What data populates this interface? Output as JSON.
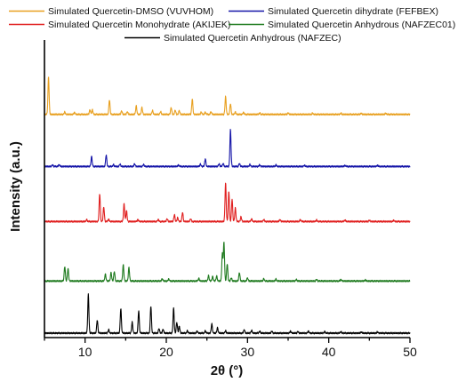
{
  "chart_data": {
    "type": "line",
    "title": "",
    "xlabel": "2θ (°)",
    "ylabel": "Intensity (a.u.)",
    "xlim": [
      5,
      50
    ],
    "x_ticks": [
      10,
      20,
      30,
      40,
      50
    ],
    "y_ticks_shown": false,
    "grid": false,
    "legend_position": "top",
    "series": [
      {
        "name": "Simulated Quercetin-DMSO (VUVHOM)",
        "color": "#E8A020",
        "baseline": 0.75,
        "peaks": [
          [
            5.5,
            0.97
          ],
          [
            7.5,
            0.06
          ],
          [
            8.7,
            0.05
          ],
          [
            10.6,
            0.12
          ],
          [
            10.9,
            0.12
          ],
          [
            13.0,
            0.38
          ],
          [
            14.5,
            0.09
          ],
          [
            15.2,
            0.07
          ],
          [
            16.3,
            0.22
          ],
          [
            17.0,
            0.18
          ],
          [
            18.3,
            0.1
          ],
          [
            19.3,
            0.07
          ],
          [
            20.6,
            0.18
          ],
          [
            21.1,
            0.11
          ],
          [
            21.6,
            0.1
          ],
          [
            23.2,
            0.4
          ],
          [
            24.3,
            0.06
          ],
          [
            24.8,
            0.06
          ],
          [
            25.5,
            0.07
          ],
          [
            27.3,
            0.46
          ],
          [
            27.9,
            0.28
          ],
          [
            28.5,
            0.06
          ],
          [
            29.5,
            0.05
          ],
          [
            31.5,
            0.04
          ],
          [
            35.0,
            0.04
          ],
          [
            38.0,
            0.03
          ],
          [
            41.5,
            0.03
          ],
          [
            44.0,
            0.03
          ],
          [
            47.0,
            0.03
          ]
        ]
      },
      {
        "name": "Simulated Quercetin dihydrate (FEFBEX)",
        "color": "#1515A8",
        "baseline": 0.575,
        "peaks": [
          [
            6.0,
            0.04
          ],
          [
            6.8,
            0.05
          ],
          [
            10.8,
            0.26
          ],
          [
            12.6,
            0.3
          ],
          [
            13.5,
            0.05
          ],
          [
            14.3,
            0.06
          ],
          [
            16.1,
            0.07
          ],
          [
            17.2,
            0.05
          ],
          [
            21.5,
            0.04
          ],
          [
            24.2,
            0.06
          ],
          [
            24.8,
            0.2
          ],
          [
            26.5,
            0.07
          ],
          [
            27.0,
            0.08
          ],
          [
            27.9,
            0.95
          ],
          [
            29.0,
            0.08
          ],
          [
            30.3,
            0.05
          ],
          [
            31.5,
            0.04
          ],
          [
            33.5,
            0.04
          ],
          [
            37.0,
            0.03
          ],
          [
            42.0,
            0.03
          ],
          [
            46.0,
            0.03
          ]
        ]
      },
      {
        "name": "Simulated Quercetin Monohydrate (AKIJEK)",
        "color": "#E01E1E",
        "baseline": 0.39,
        "peaks": [
          [
            10.2,
            0.05
          ],
          [
            11.8,
            0.72
          ],
          [
            12.3,
            0.38
          ],
          [
            12.9,
            0.06
          ],
          [
            14.8,
            0.46
          ],
          [
            15.1,
            0.28
          ],
          [
            16.5,
            0.05
          ],
          [
            19.0,
            0.05
          ],
          [
            20.1,
            0.07
          ],
          [
            21.0,
            0.18
          ],
          [
            21.4,
            0.1
          ],
          [
            22.0,
            0.24
          ],
          [
            23.0,
            0.07
          ],
          [
            27.3,
            1.0
          ],
          [
            27.7,
            0.78
          ],
          [
            28.1,
            0.58
          ],
          [
            28.5,
            0.35
          ],
          [
            29.2,
            0.12
          ],
          [
            30.5,
            0.07
          ],
          [
            32.0,
            0.05
          ],
          [
            34.0,
            0.05
          ],
          [
            36.5,
            0.05
          ],
          [
            38.5,
            0.04
          ],
          [
            42.0,
            0.04
          ],
          [
            45.0,
            0.03
          ],
          [
            48.0,
            0.03
          ]
        ]
      },
      {
        "name": "Simulated Quercetin Anhydrous (NAFZEC01)",
        "color": "#1E7A1E",
        "baseline": 0.19,
        "peaks": [
          [
            7.5,
            0.38
          ],
          [
            7.9,
            0.32
          ],
          [
            12.5,
            0.18
          ],
          [
            13.2,
            0.22
          ],
          [
            13.6,
            0.25
          ],
          [
            14.7,
            0.42
          ],
          [
            15.4,
            0.35
          ],
          [
            19.5,
            0.06
          ],
          [
            20.3,
            0.05
          ],
          [
            24.0,
            0.07
          ],
          [
            25.2,
            0.14
          ],
          [
            25.7,
            0.12
          ],
          [
            26.2,
            0.13
          ],
          [
            26.9,
            0.7
          ],
          [
            27.1,
            1.0
          ],
          [
            27.5,
            0.45
          ],
          [
            28.0,
            0.08
          ],
          [
            29.0,
            0.22
          ],
          [
            30.0,
            0.08
          ],
          [
            32.0,
            0.06
          ],
          [
            33.5,
            0.05
          ],
          [
            36.0,
            0.04
          ],
          [
            38.5,
            0.04
          ],
          [
            41.5,
            0.04
          ],
          [
            44.5,
            0.03
          ]
        ]
      },
      {
        "name": "Simulated Quercetin Anhydrous (NAFZEC)",
        "color": "#000000",
        "baseline": 0.015,
        "peaks": [
          [
            10.4,
            1.0
          ],
          [
            11.5,
            0.34
          ],
          [
            12.9,
            0.09
          ],
          [
            14.4,
            0.64
          ],
          [
            15.8,
            0.28
          ],
          [
            16.6,
            0.58
          ],
          [
            18.1,
            0.7
          ],
          [
            19.1,
            0.12
          ],
          [
            19.6,
            0.1
          ],
          [
            20.9,
            0.65
          ],
          [
            21.3,
            0.28
          ],
          [
            21.6,
            0.18
          ],
          [
            22.6,
            0.06
          ],
          [
            23.8,
            0.05
          ],
          [
            24.8,
            0.06
          ],
          [
            25.6,
            0.24
          ],
          [
            26.3,
            0.14
          ],
          [
            27.3,
            0.06
          ],
          [
            29.6,
            0.09
          ],
          [
            30.5,
            0.07
          ],
          [
            31.5,
            0.05
          ],
          [
            33.0,
            0.05
          ],
          [
            35.3,
            0.05
          ],
          [
            36.2,
            0.04
          ],
          [
            37.5,
            0.05
          ],
          [
            39.5,
            0.04
          ],
          [
            41.5,
            0.04
          ],
          [
            44.0,
            0.03
          ],
          [
            46.0,
            0.03
          ]
        ]
      }
    ]
  }
}
